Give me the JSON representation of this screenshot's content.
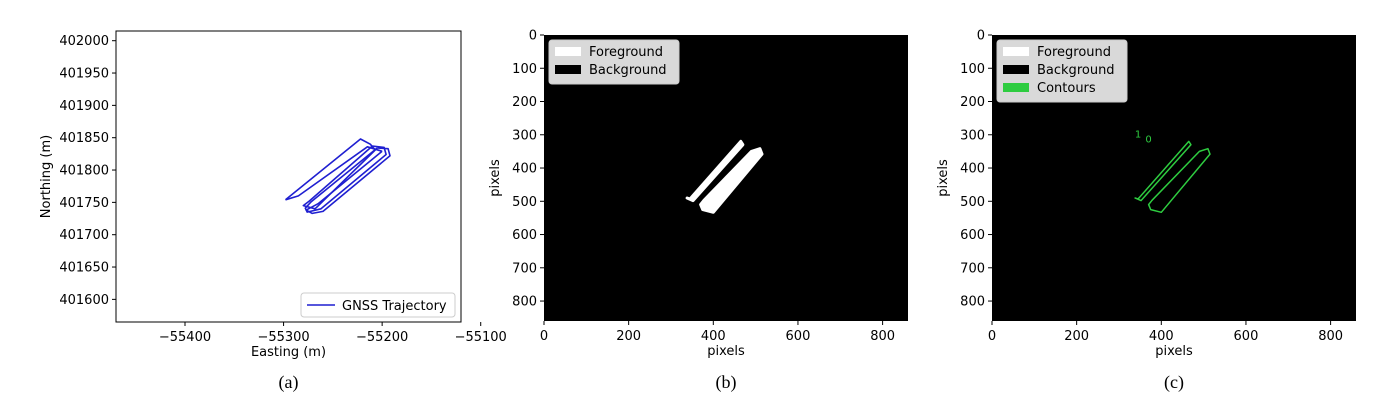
{
  "colors": {
    "trajectory": "#1f1fd1",
    "foreground": "#ffffff",
    "background": "#000000",
    "contours": "#2ecc40"
  },
  "chart_data": [
    {
      "type": "line",
      "caption": "(a)",
      "xlabel": "Easting (m)",
      "ylabel": "Northing (m)",
      "xlim": [
        -55470,
        -55120
      ],
      "ylim": [
        401565,
        402015
      ],
      "xticks": [
        -55400,
        -55300,
        -55200,
        -55100
      ],
      "xtick_labels": [
        "−55400",
        "−55300",
        "−55200",
        "−55100"
      ],
      "yticks": [
        401600,
        401650,
        401700,
        401750,
        401800,
        401850,
        401900,
        401950,
        402000
      ],
      "ytick_labels": [
        "401600",
        "401650",
        "401700",
        "401750",
        "401800",
        "401850",
        "401900",
        "401950",
        "402000"
      ],
      "grid": false,
      "legend": {
        "position": "lower-right",
        "entries": [
          "GNSS Trajectory"
        ]
      },
      "series": [
        {
          "name": "GNSS Trajectory",
          "loops": [
            {
              "x": [
                -55298,
                -55222,
                -55212,
                -55207,
                -55268,
                -55280,
                -55274,
                -55210
              ],
              "y": [
                401754,
                401848,
                401840,
                401831,
                401740,
                401745,
                401752,
                401837
              ]
            },
            {
              "x": [
                -55210,
                -55198,
                -55196,
                -55262,
                -55276,
                -55278,
                -55272,
                -55205
              ],
              "y": [
                401837,
                401835,
                401824,
                401740,
                401735,
                401741,
                401751,
                401834
              ]
            },
            {
              "x": [
                -55205,
                -55194,
                -55192,
                -55260,
                -55271,
                -55277,
                -55265,
                -55200
              ],
              "y": [
                401834,
                401833,
                401822,
                401736,
                401733,
                401738,
                401748,
                401829
              ]
            },
            {
              "x": [
                -55200,
                -55215,
                -55285,
                -55298
              ],
              "y": [
                401829,
                401836,
                401760,
                401754
              ]
            }
          ]
        }
      ]
    },
    {
      "type": "heatmap",
      "caption": "(b)",
      "xlabel": "pixels",
      "ylabel": "pixels",
      "xlim": [
        0,
        860
      ],
      "ylim": [
        860,
        0
      ],
      "xticks": [
        0,
        200,
        400,
        600,
        800
      ],
      "yticks": [
        0,
        100,
        200,
        300,
        400,
        500,
        600,
        700,
        800
      ],
      "legend": {
        "position": "upper-left",
        "entries": [
          "Foreground",
          "Background"
        ]
      },
      "regions": [
        {
          "label": "Foreground",
          "x": [
            345,
            465,
            470,
            352,
            338
          ],
          "y": [
            493,
            320,
            330,
            498,
            490
          ]
        },
        {
          "label": "Foreground",
          "x": [
            378,
            490,
            510,
            515,
            400,
            375,
            370
          ],
          "y": [
            497,
            350,
            342,
            358,
            533,
            525,
            510
          ]
        }
      ]
    },
    {
      "type": "heatmap",
      "caption": "(c)",
      "xlabel": "pixels",
      "ylabel": "pixels",
      "xlim": [
        0,
        860
      ],
      "ylim": [
        860,
        0
      ],
      "xticks": [
        0,
        200,
        400,
        600,
        800
      ],
      "yticks": [
        0,
        100,
        200,
        300,
        400,
        500,
        600,
        700,
        800
      ],
      "legend": {
        "position": "upper-left",
        "entries": [
          "Foreground",
          "Background",
          "Contours"
        ]
      },
      "annotations": [
        {
          "text": "1",
          "x": 345,
          "y": 308
        },
        {
          "text": "0",
          "x": 370,
          "y": 323
        }
      ],
      "regions": [
        {
          "label": "Foreground",
          "x": [
            345,
            465,
            470,
            352,
            338
          ],
          "y": [
            493,
            320,
            330,
            498,
            490
          ]
        },
        {
          "label": "Foreground",
          "x": [
            378,
            490,
            510,
            515,
            400,
            375,
            370
          ],
          "y": [
            497,
            350,
            342,
            358,
            533,
            525,
            510
          ]
        }
      ]
    }
  ]
}
